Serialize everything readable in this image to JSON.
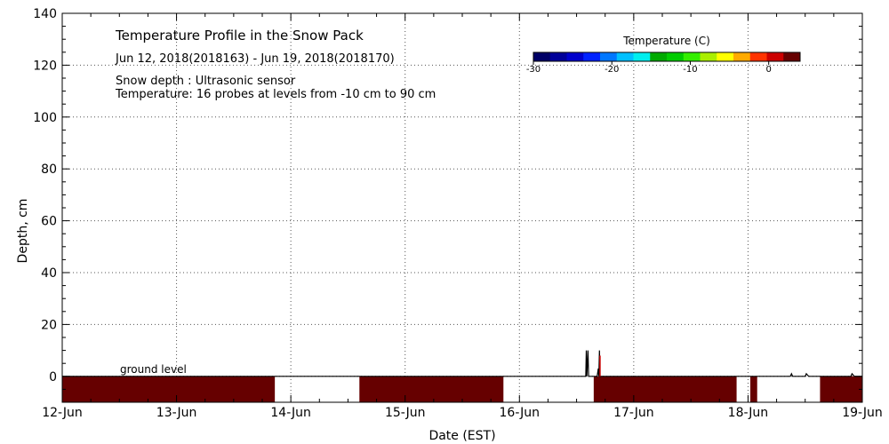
{
  "chart_data": {
    "type": "heatmap",
    "title": "Temperature Profile in the Snow Pack",
    "subtitle": "Jun 12, 2018(2018163) - Jun 19, 2018(2018170)",
    "notes": [
      "Snow depth : Ultrasonic sensor",
      "Temperature: 16 probes at levels from -10 cm to 90 cm"
    ],
    "xlabel": "Date (EST)",
    "ylabel": "Depth, cm",
    "x_ticks": [
      "12-Jun",
      "13-Jun",
      "14-Jun",
      "15-Jun",
      "16-Jun",
      "17-Jun",
      "18-Jun",
      "19-Jun"
    ],
    "xlim": [
      0,
      7
    ],
    "ylim": [
      -10,
      140
    ],
    "y_ticks": [
      0,
      20,
      40,
      60,
      80,
      100,
      120,
      140
    ],
    "grid": true,
    "ground_label": "ground level",
    "colorbar": {
      "title": "Temperature (C)",
      "range": [
        -30,
        4
      ],
      "ticks": [
        -30,
        -20,
        -10,
        0
      ],
      "colors": [
        "#000066",
        "#000099",
        "#0000cc",
        "#0022ff",
        "#0077ff",
        "#00c0ff",
        "#00eeee",
        "#00aa00",
        "#00cc00",
        "#33ee00",
        "#aaee00",
        "#ffff00",
        "#ffaa00",
        "#ff3300",
        "#cc0000",
        "#660000"
      ]
    },
    "ground_temperature_segments": [
      {
        "start": 0.0,
        "end": 1.86,
        "band": "warm"
      },
      {
        "start": 2.6,
        "end": 3.86,
        "band": "warm"
      },
      {
        "start": 4.65,
        "end": 5.9,
        "band": "warm"
      },
      {
        "start": 6.02,
        "end": 6.08,
        "band": "warm"
      },
      {
        "start": 6.63,
        "end": 7.0,
        "band": "warm"
      }
    ],
    "segment_colors": {
      "warm": "#660000"
    },
    "snow_depth": [
      {
        "x": 0.0,
        "y": 0
      },
      {
        "x": 4.58,
        "y": 0
      },
      {
        "x": 4.585,
        "y": 10
      },
      {
        "x": 4.59,
        "y": 0
      },
      {
        "x": 4.6,
        "y": 10
      },
      {
        "x": 4.605,
        "y": 0
      },
      {
        "x": 4.68,
        "y": 0
      },
      {
        "x": 4.69,
        "y": 3
      },
      {
        "x": 4.695,
        "y": 0
      },
      {
        "x": 4.7,
        "y": 10
      },
      {
        "x": 4.705,
        "y": 0
      },
      {
        "x": 4.72,
        "y": 0
      },
      {
        "x": 4.73,
        "y": 0
      },
      {
        "x": 6.37,
        "y": 0
      },
      {
        "x": 6.38,
        "y": 1
      },
      {
        "x": 6.39,
        "y": 0
      },
      {
        "x": 6.5,
        "y": 0
      },
      {
        "x": 6.51,
        "y": 1
      },
      {
        "x": 6.53,
        "y": 0
      },
      {
        "x": 6.9,
        "y": 0
      },
      {
        "x": 6.91,
        "y": 1
      },
      {
        "x": 6.93,
        "y": 0
      },
      {
        "x": 7.0,
        "y": 0
      }
    ]
  }
}
